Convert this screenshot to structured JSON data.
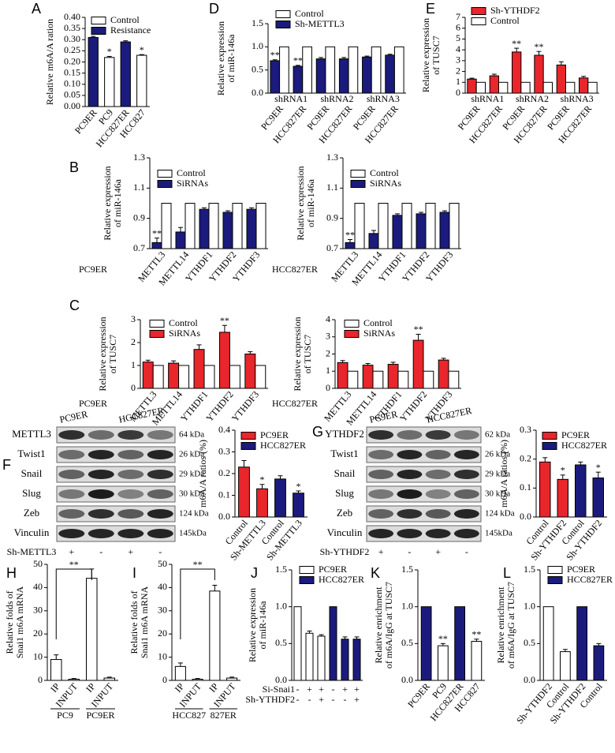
{
  "chart_data": [
    {
      "type": "bar",
      "panel": "A",
      "ylabel": [
        "Relative m6A/A ration"
      ],
      "categories": [
        "PC9ER",
        "PC9",
        "HCC827ER",
        "HCC827"
      ],
      "series": [
        {
          "name": "Control",
          "color": "#ffffff",
          "values": [
            null,
            0.22,
            null,
            0.23
          ],
          "errors": [
            null,
            0.005,
            null,
            0.003
          ],
          "stars": [
            null,
            "*",
            null,
            "*"
          ]
        },
        {
          "name": "Resistance",
          "color": "#1b1b7d",
          "values": [
            0.31,
            null,
            0.29,
            null
          ],
          "errors": [
            0.005,
            null,
            0.005,
            null
          ]
        }
      ],
      "ylim": [
        0,
        0.4
      ],
      "yticks": [
        {
          "value": 0,
          "label": "0.00"
        },
        {
          "value": 0.05,
          "label": "0.05"
        },
        {
          "value": 0.1,
          "label": "0.10"
        },
        {
          "value": 0.15,
          "label": "0.15"
        },
        {
          "value": 0.2,
          "label": "0.20"
        },
        {
          "value": 0.25,
          "label": "0.25"
        },
        {
          "value": 0.3,
          "label": "0.30"
        },
        {
          "value": 0.35,
          "label": "0.35"
        },
        {
          "value": 0.4,
          "label": "0.40"
        }
      ]
    },
    {
      "type": "bar",
      "panel": "D",
      "ylabel": [
        "Relative expression",
        "of miR-146a"
      ],
      "categories": [
        "PC9ER",
        "HCC827ER",
        "PC9ER",
        "HCC827ER",
        "PC9ER",
        "HCC827ER"
      ],
      "groups": [
        "shRNA1",
        "shRNA2",
        "shRNA3"
      ],
      "series": [
        {
          "name": "Control",
          "color": "#ffffff",
          "values": [
            1,
            1,
            1,
            1,
            1,
            1
          ]
        },
        {
          "name": "Sh-METTL3",
          "color": "#1b1b7d",
          "values": [
            0.7,
            0.58,
            0.74,
            0.74,
            0.78,
            0.82
          ],
          "errors": [
            0.02,
            0.02,
            0.03,
            0.03,
            0.02,
            0.02
          ],
          "stars": [
            "**",
            "**",
            null,
            null,
            null,
            null
          ]
        }
      ],
      "ylim": [
        0,
        1.5
      ],
      "yticks": [
        {
          "value": 0,
          "label": "0.0"
        },
        {
          "value": 0.5,
          "label": "0.5"
        },
        {
          "value": 1,
          "label": "1.0"
        },
        {
          "value": 1.5,
          "label": "1.5"
        }
      ]
    },
    {
      "type": "bar",
      "panel": "E",
      "ylabel": [
        "Relative expression",
        "of TUSC7"
      ],
      "categories": [
        "PC9ER",
        "HCC827ER",
        "PC9ER",
        "HCC827ER",
        "PC9ER",
        "HCC827ER"
      ],
      "groups": [
        "shRNA1",
        "shRNA2",
        "shRNA3"
      ],
      "series": [
        {
          "name": "Sh-YTHDF2",
          "color": "#e8262b",
          "values": [
            1.3,
            1.6,
            3.8,
            3.5,
            2.6,
            1.4
          ],
          "errors": [
            0.08,
            0.15,
            0.35,
            0.35,
            0.3,
            0.15
          ],
          "stars": [
            null,
            null,
            "**",
            "**",
            null,
            null
          ]
        },
        {
          "name": "Control",
          "color": "#ffffff",
          "values": [
            1,
            1,
            1,
            1,
            1,
            1
          ]
        }
      ],
      "ylim": [
        0,
        7
      ],
      "yticks": [
        0,
        1,
        2,
        3,
        4,
        5,
        6,
        7
      ]
    },
    {
      "type": "bar",
      "panel": "B",
      "ylabel": [
        "Relative expression",
        "of miR-146a"
      ],
      "sample": "PC9ER",
      "categories": [
        "METTL3",
        "METTL14",
        "YTHDF1",
        "YTHDF2",
        "YTHDF3"
      ],
      "series": [
        {
          "name": "Control",
          "color": "#ffffff",
          "values": [
            1,
            1,
            1,
            1,
            1
          ]
        },
        {
          "name": "SiRNAs",
          "color": "#1b1b7d",
          "values": [
            0.74,
            0.81,
            0.96,
            0.94,
            0.96
          ],
          "errors": [
            0.03,
            0.03,
            0.01,
            0.01,
            0.01
          ],
          "stars": [
            "**",
            null,
            null,
            null,
            null
          ]
        }
      ],
      "ylim": [
        0.7,
        1.3
      ],
      "yticks": [
        0.7,
        0.9,
        1.1,
        1.3
      ]
    },
    {
      "type": "bar",
      "ylabel": [
        "Relative expression",
        "of miR-146a"
      ],
      "sample": "HCC827ER",
      "categories": [
        "METTL3",
        "METTL14",
        "YTHDF1",
        "YTHDF2",
        "YTHDF3"
      ],
      "series": [
        {
          "name": "Control",
          "color": "#ffffff",
          "values": [
            1,
            1,
            1,
            1,
            1
          ]
        },
        {
          "name": "SiRNAs",
          "color": "#1b1b7d",
          "values": [
            0.74,
            0.8,
            0.92,
            0.93,
            0.94
          ],
          "errors": [
            0.02,
            0.02,
            0.01,
            0.01,
            0.01
          ],
          "stars": [
            "**",
            null,
            null,
            null,
            null
          ]
        }
      ],
      "ylim": [
        0.7,
        1.3
      ],
      "yticks": [
        0.7,
        0.9,
        1.1,
        1.3
      ]
    },
    {
      "type": "bar",
      "panel": "C",
      "ylabel": [
        "Relative expression",
        "of TUSC7"
      ],
      "sample": "PC9ER",
      "categories": [
        "METTL3",
        "METTL14",
        "YTHDF1",
        "YTHDF2",
        "YTHDF3"
      ],
      "series": [
        {
          "name": "Control",
          "color": "#ffffff",
          "values": [
            1,
            1,
            1,
            1,
            1
          ]
        },
        {
          "name": "SiRNAs",
          "color": "#e8262b",
          "values": [
            1.15,
            1.1,
            1.7,
            2.45,
            1.5
          ],
          "errors": [
            0.08,
            0.1,
            0.2,
            0.3,
            0.1
          ],
          "stars": [
            null,
            null,
            null,
            "**",
            null
          ]
        }
      ],
      "ylim": [
        0,
        3
      ],
      "yticks": [
        0,
        1,
        2,
        3
      ]
    },
    {
      "type": "bar",
      "ylabel": [
        "Relative expression",
        "of TUSC7"
      ],
      "sample": "HCC827ER",
      "categories": [
        "METTL3",
        "METTL14",
        "YTHDF1",
        "YTHDF2",
        "YTHDF3"
      ],
      "series": [
        {
          "name": "Control",
          "color": "#ffffff",
          "values": [
            1,
            1,
            1,
            1,
            1
          ]
        },
        {
          "name": "SiRNAs",
          "color": "#e8262b",
          "values": [
            1.5,
            1.35,
            1.4,
            2.8,
            1.65
          ],
          "errors": [
            0.12,
            0.1,
            0.12,
            0.35,
            0.1
          ],
          "stars": [
            null,
            null,
            null,
            "**",
            null
          ]
        }
      ],
      "ylim": [
        0,
        4
      ],
      "yticks": [
        0,
        1,
        2,
        3,
        4
      ]
    },
    {
      "type": "bar",
      "ylabel": [
        "m6A/A ratios (%)"
      ],
      "categories": [
        "Control",
        "Sh-METTL3",
        "Control",
        "Sh-METTL3"
      ],
      "series": [
        {
          "name": "PC9ER",
          "color": "#e8262b",
          "values": [
            0.23,
            0.13,
            null,
            null
          ],
          "errors": [
            0.03,
            0.02,
            null,
            null
          ],
          "stars": [
            null,
            "*",
            null,
            null
          ]
        },
        {
          "name": "HCC827ER",
          "color": "#1b1b7d",
          "values": [
            null,
            null,
            0.175,
            0.11
          ],
          "errors": [
            null,
            null,
            0.015,
            0.01
          ],
          "stars": [
            null,
            null,
            null,
            "*"
          ]
        }
      ],
      "ylim": [
        0,
        0.4
      ],
      "yticks": [
        {
          "value": 0,
          "label": "0.0"
        },
        {
          "value": 0.1,
          "label": "0.1"
        },
        {
          "value": 0.2,
          "label": "0.2"
        },
        {
          "value": 0.3,
          "label": "0.3"
        },
        {
          "value": 0.4,
          "label": "0.4"
        }
      ]
    },
    {
      "type": "bar",
      "ylabel": [
        "m6A/A ratios (%)"
      ],
      "categories": [
        "Control",
        "Sh-YTHDF2",
        "Control",
        "Sh-YTHDF2"
      ],
      "series": [
        {
          "name": "PC9ER",
          "color": "#e8262b",
          "values": [
            0.19,
            0.13,
            null,
            null
          ],
          "errors": [
            0.015,
            0.015,
            null,
            null
          ],
          "stars": [
            null,
            "*",
            null,
            null
          ]
        },
        {
          "name": "HCC827ER",
          "color": "#1b1b7d",
          "values": [
            null,
            null,
            0.18,
            0.135
          ],
          "errors": [
            null,
            null,
            0.01,
            0.02
          ],
          "stars": [
            null,
            null,
            null,
            "*"
          ]
        }
      ],
      "ylim": [
        0,
        0.3
      ],
      "yticks": [
        {
          "value": 0,
          "label": "0.0"
        },
        {
          "value": 0.1,
          "label": "0.1"
        },
        {
          "value": 0.2,
          "label": "0.2"
        },
        {
          "value": 0.3,
          "label": "0.3"
        }
      ]
    },
    {
      "type": "bar",
      "panel": "H",
      "ylabel": [
        "Relative folds of",
        "Snai1 m6A mRNA"
      ],
      "categories": [
        "IP",
        "INPUT",
        "IP",
        "INPUT"
      ],
      "groups": [
        "PC9",
        "PC9ER"
      ],
      "bracket_label": "**",
      "series": [
        {
          "color": "#ffffff",
          "values": [
            9,
            0.5,
            44,
            1
          ],
          "errors": [
            2,
            0.3,
            4,
            0.4
          ]
        }
      ],
      "ylim": [
        0,
        50
      ],
      "yticks": [
        0,
        10,
        20,
        30,
        40,
        50
      ]
    },
    {
      "type": "bar",
      "panel": "I",
      "ylabel": [
        "Relative folds of",
        "Snai1 m6A mRNA"
      ],
      "categories": [
        "IP",
        "INPUT",
        "IP",
        "INPUT"
      ],
      "groups": [
        "HCC827",
        "827ER"
      ],
      "bracket_label": "**",
      "series": [
        {
          "color": "#ffffff",
          "values": [
            6,
            0.5,
            38.5,
            1
          ],
          "errors": [
            1.5,
            0.3,
            2.5,
            0.4
          ]
        }
      ],
      "ylim": [
        0,
        50
      ],
      "yticks": [
        0,
        10,
        20,
        30,
        40,
        50
      ]
    },
    {
      "type": "bar",
      "panel": "J",
      "ylabel": [
        "Relative expression",
        "of miR-146a"
      ],
      "categories": [
        null,
        null,
        null,
        null,
        null,
        null
      ],
      "sign_rows": [
        {
          "label": "Si-Snai1",
          "signs": [
            "-",
            "+",
            "+",
            "-",
            "+",
            "+"
          ]
        },
        {
          "label": "Sh-YTHDF2",
          "signs": [
            "-",
            "-",
            "+",
            "-",
            "-",
            "+"
          ]
        }
      ],
      "series": [
        {
          "name": "PC9ER",
          "color": "#ffffff",
          "values": [
            1,
            0.64,
            0.6,
            null,
            null,
            null
          ],
          "errors": [
            null,
            0.03,
            0.02,
            null,
            null,
            null
          ]
        },
        {
          "name": "HCC827ER",
          "color": "#1b1b7d",
          "values": [
            null,
            null,
            null,
            1,
            0.56,
            0.56
          ],
          "errors": [
            null,
            null,
            null,
            null,
            0.03,
            0.03
          ]
        }
      ],
      "ylim": [
        0,
        1.5
      ],
      "yticks": [
        {
          "value": 0,
          "label": "0.0"
        },
        {
          "value": 0.5,
          "label": "0.5"
        },
        {
          "value": 1,
          "label": "1.0"
        },
        {
          "value": 1.5,
          "label": "1.5"
        }
      ]
    },
    {
      "type": "bar",
      "panel": "K",
      "ylabel": [
        "Relative enrichment",
        "of m6A/IgG at TUSC7"
      ],
      "categories": [
        "PC9ER",
        "PC9",
        "HCC827ER",
        "HCC827"
      ],
      "series": [
        {
          "color": "#1b1b7d",
          "values": [
            1,
            null,
            1,
            null
          ]
        },
        {
          "color": "#ffffff",
          "values": [
            null,
            0.47,
            null,
            0.53
          ],
          "errors": [
            null,
            0.03,
            null,
            0.03
          ],
          "stars": [
            null,
            "**",
            null,
            "**"
          ]
        }
      ],
      "ylim": [
        0,
        1.5
      ],
      "yticks": [
        {
          "value": 0,
          "label": "0.0"
        },
        {
          "value": 0.5,
          "label": "0.5"
        },
        {
          "value": 1,
          "label": "1.0"
        },
        {
          "value": 1.5,
          "label": "1.5"
        }
      ]
    },
    {
      "type": "bar",
      "panel": "L",
      "ylabel": [
        "Relative enrichment",
        "of m6A/IgG at TUSC7"
      ],
      "categories": [
        "Sh-YTHDF2",
        "Control",
        "Sh-YTHDF2",
        "Control"
      ],
      "series": [
        {
          "name": "PC9ER",
          "color": "#ffffff",
          "values": [
            1,
            0.39,
            null,
            null
          ],
          "errors": [
            null,
            0.03,
            null,
            null
          ]
        },
        {
          "name": "HCC827ER",
          "color": "#1b1b7d",
          "values": [
            null,
            null,
            1,
            0.47
          ],
          "errors": [
            null,
            null,
            null,
            0.03
          ]
        }
      ],
      "ylim": [
        0,
        1.5
      ],
      "yticks": [
        {
          "value": 0,
          "label": "0.0"
        },
        {
          "value": 0.5,
          "label": "0.5"
        },
        {
          "value": 1,
          "label": "1.0"
        },
        {
          "value": 1.5,
          "label": "1.5"
        }
      ]
    }
  ],
  "blots": [
    {
      "panel": "F",
      "lanes": [
        "PC9ER",
        "HCC827ER"
      ],
      "treatment": "Sh-METTL3",
      "signs": [
        "+",
        "-",
        "+",
        "-"
      ],
      "proteins": [
        {
          "name": "METTL3",
          "size": "64 kDa"
        },
        {
          "name": "Twist1",
          "size": "26 kDa"
        },
        {
          "name": "Snail",
          "size": "29 kDa"
        },
        {
          "name": "Slug",
          "size": "30 kDa"
        },
        {
          "name": "Zeb",
          "size": "124 kDa"
        },
        {
          "name": "Vinculin",
          "size": "145kDa"
        }
      ]
    },
    {
      "panel": "G",
      "lanes": [
        "PC9ER",
        "HCC827ER"
      ],
      "treatment": "Sh-YTHDF2",
      "signs": [
        "+",
        "-",
        "+",
        "-"
      ],
      "proteins": [
        {
          "name": "YTHDF2",
          "size": "62 kDa"
        },
        {
          "name": "Twist1",
          "size": "26 kDa"
        },
        {
          "name": "Snail",
          "size": "29 kDa"
        },
        {
          "name": "Slug",
          "size": "30 kDa"
        },
        {
          "name": "Zeb",
          "size": "124 kDa"
        },
        {
          "name": "Vinculin",
          "size": "145kDa"
        }
      ]
    }
  ]
}
